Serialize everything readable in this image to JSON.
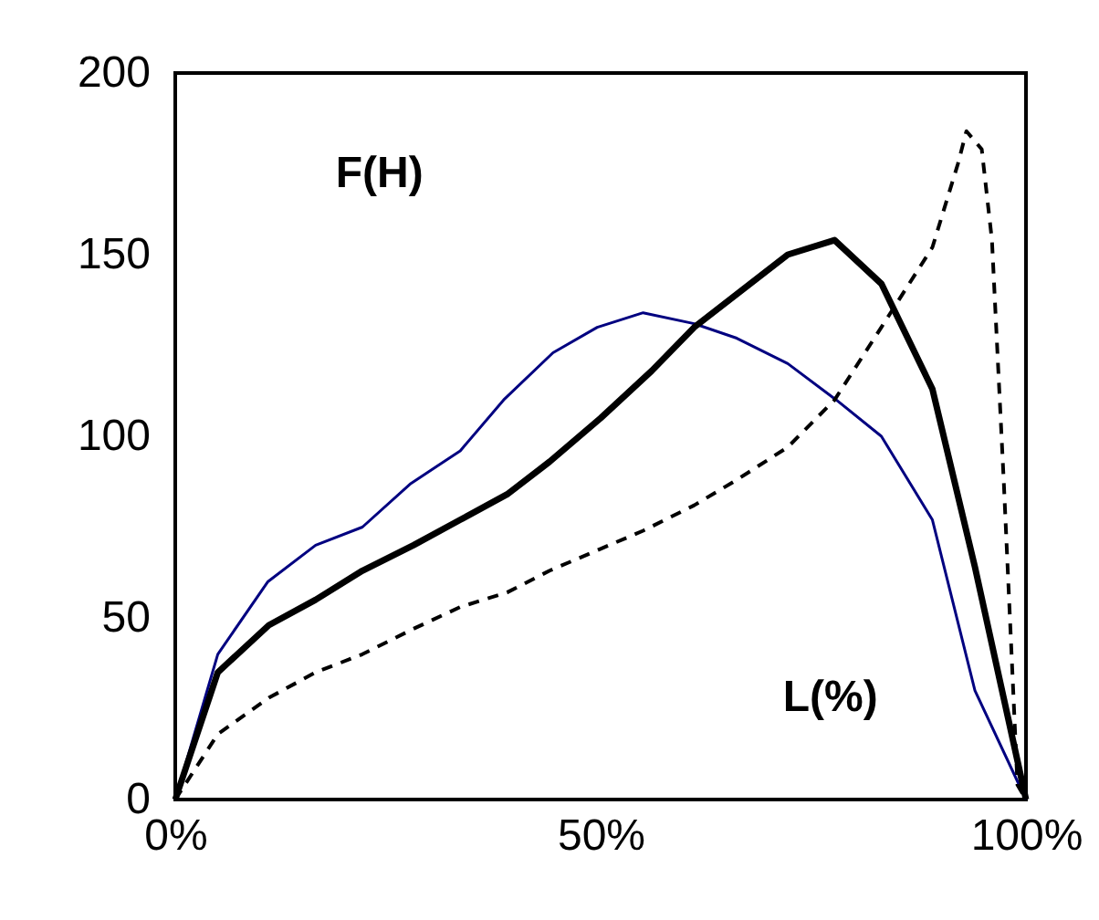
{
  "chart_data": {
    "type": "line",
    "annotations": [
      "F(H)",
      "L(%)"
    ],
    "xlim": [
      0,
      100
    ],
    "xticks": [
      {
        "value": 0,
        "label": "0%"
      },
      {
        "value": 50,
        "label": "50%"
      },
      {
        "value": 100,
        "label": "100%"
      }
    ],
    "ylim": [
      0,
      200
    ],
    "yticks": [
      0,
      50,
      100,
      150,
      200
    ],
    "grid": false,
    "marker": "none",
    "series": [
      {
        "color": "#000080",
        "line_style": "solid",
        "x": [
          0,
          5,
          10.9,
          16.5,
          22,
          27.7,
          33.5,
          38.6,
          44.4,
          49.6,
          55,
          61,
          66,
          72,
          77.7,
          83,
          89,
          94,
          100
        ],
        "values": [
          0,
          40,
          60,
          70,
          75,
          87,
          96,
          110,
          123,
          130,
          134,
          131,
          127,
          120,
          110,
          100,
          77,
          30,
          0
        ]
      },
      {
        "color": "#000000",
        "line_style": "solid",
        "x": [
          0,
          5,
          11,
          16.5,
          22,
          28,
          33.5,
          39,
          44,
          50,
          56,
          61,
          66.5,
          72,
          77.5,
          83,
          89,
          94,
          100
        ],
        "values": [
          0,
          35,
          48,
          55,
          63,
          70,
          77,
          84,
          93,
          105,
          118,
          130,
          140,
          150,
          154,
          142,
          113,
          64,
          0
        ]
      },
      {
        "color": "#000000",
        "line_style": "dashed",
        "x": [
          0,
          5,
          11,
          16.5,
          22,
          28,
          33.5,
          39,
          44,
          50,
          55,
          61,
          66,
          72,
          77.5,
          83,
          89,
          92,
          93,
          94.8,
          96,
          97.4,
          99,
          100
        ],
        "values": [
          0,
          18,
          28,
          35,
          40,
          47,
          53,
          57,
          63,
          69,
          74,
          81,
          88,
          97,
          110,
          130,
          152,
          175,
          184,
          179,
          154,
          87,
          4,
          0
        ]
      }
    ]
  }
}
